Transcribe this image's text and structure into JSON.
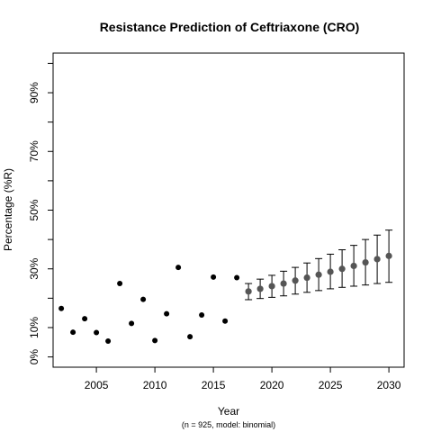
{
  "chart_data": {
    "type": "scatter",
    "title": "Resistance Prediction of Ceftriaxone (CRO)",
    "subtitle": "(n = 925, model: binomial)",
    "xlabel": "Year",
    "ylabel": "Percentage (%R)",
    "xlim": [
      2001.3,
      2031.3
    ],
    "ylim": [
      -0.035,
      1.035
    ],
    "x_ticks": [
      2005,
      2010,
      2015,
      2020,
      2025,
      2030
    ],
    "y_ticks": [
      {
        "value": 0.0,
        "label": "0%"
      },
      {
        "value": 0.1,
        "label": "10%"
      },
      {
        "value": 0.2,
        "label": ""
      },
      {
        "value": 0.3,
        "label": "30%"
      },
      {
        "value": 0.4,
        "label": ""
      },
      {
        "value": 0.5,
        "label": "50%"
      },
      {
        "value": 0.6,
        "label": ""
      },
      {
        "value": 0.7,
        "label": "70%"
      },
      {
        "value": 0.8,
        "label": ""
      },
      {
        "value": 0.9,
        "label": "90%"
      },
      {
        "value": 1.0,
        "label": ""
      }
    ],
    "grid": false,
    "observed_color": "#000000",
    "predicted_color": "#555555",
    "errorbar_color": "#000000",
    "series": [
      {
        "kind": "observed",
        "x": [
          2002,
          2003,
          2004,
          2005,
          2006,
          2007,
          2008,
          2009,
          2010,
          2011,
          2012,
          2013,
          2014,
          2015,
          2016,
          2017
        ],
        "y": [
          0.165,
          0.084,
          0.13,
          0.083,
          0.054,
          0.25,
          0.114,
          0.196,
          0.056,
          0.147,
          0.305,
          0.069,
          0.143,
          0.272,
          0.122,
          0.27
        ]
      },
      {
        "kind": "predicted",
        "x": [
          2018,
          2019,
          2020,
          2021,
          2022,
          2023,
          2024,
          2025,
          2026,
          2027,
          2028,
          2029,
          2030
        ],
        "y": [
          0.223,
          0.232,
          0.241,
          0.25,
          0.26,
          0.27,
          0.28,
          0.29,
          0.3,
          0.31,
          0.322,
          0.333,
          0.344
        ],
        "lower": [
          0.195,
          0.199,
          0.203,
          0.208,
          0.214,
          0.22,
          0.226,
          0.232,
          0.237,
          0.241,
          0.245,
          0.25,
          0.254
        ],
        "upper": [
          0.25,
          0.265,
          0.278,
          0.292,
          0.305,
          0.32,
          0.335,
          0.35,
          0.365,
          0.38,
          0.4,
          0.415,
          0.432
        ]
      }
    ]
  }
}
